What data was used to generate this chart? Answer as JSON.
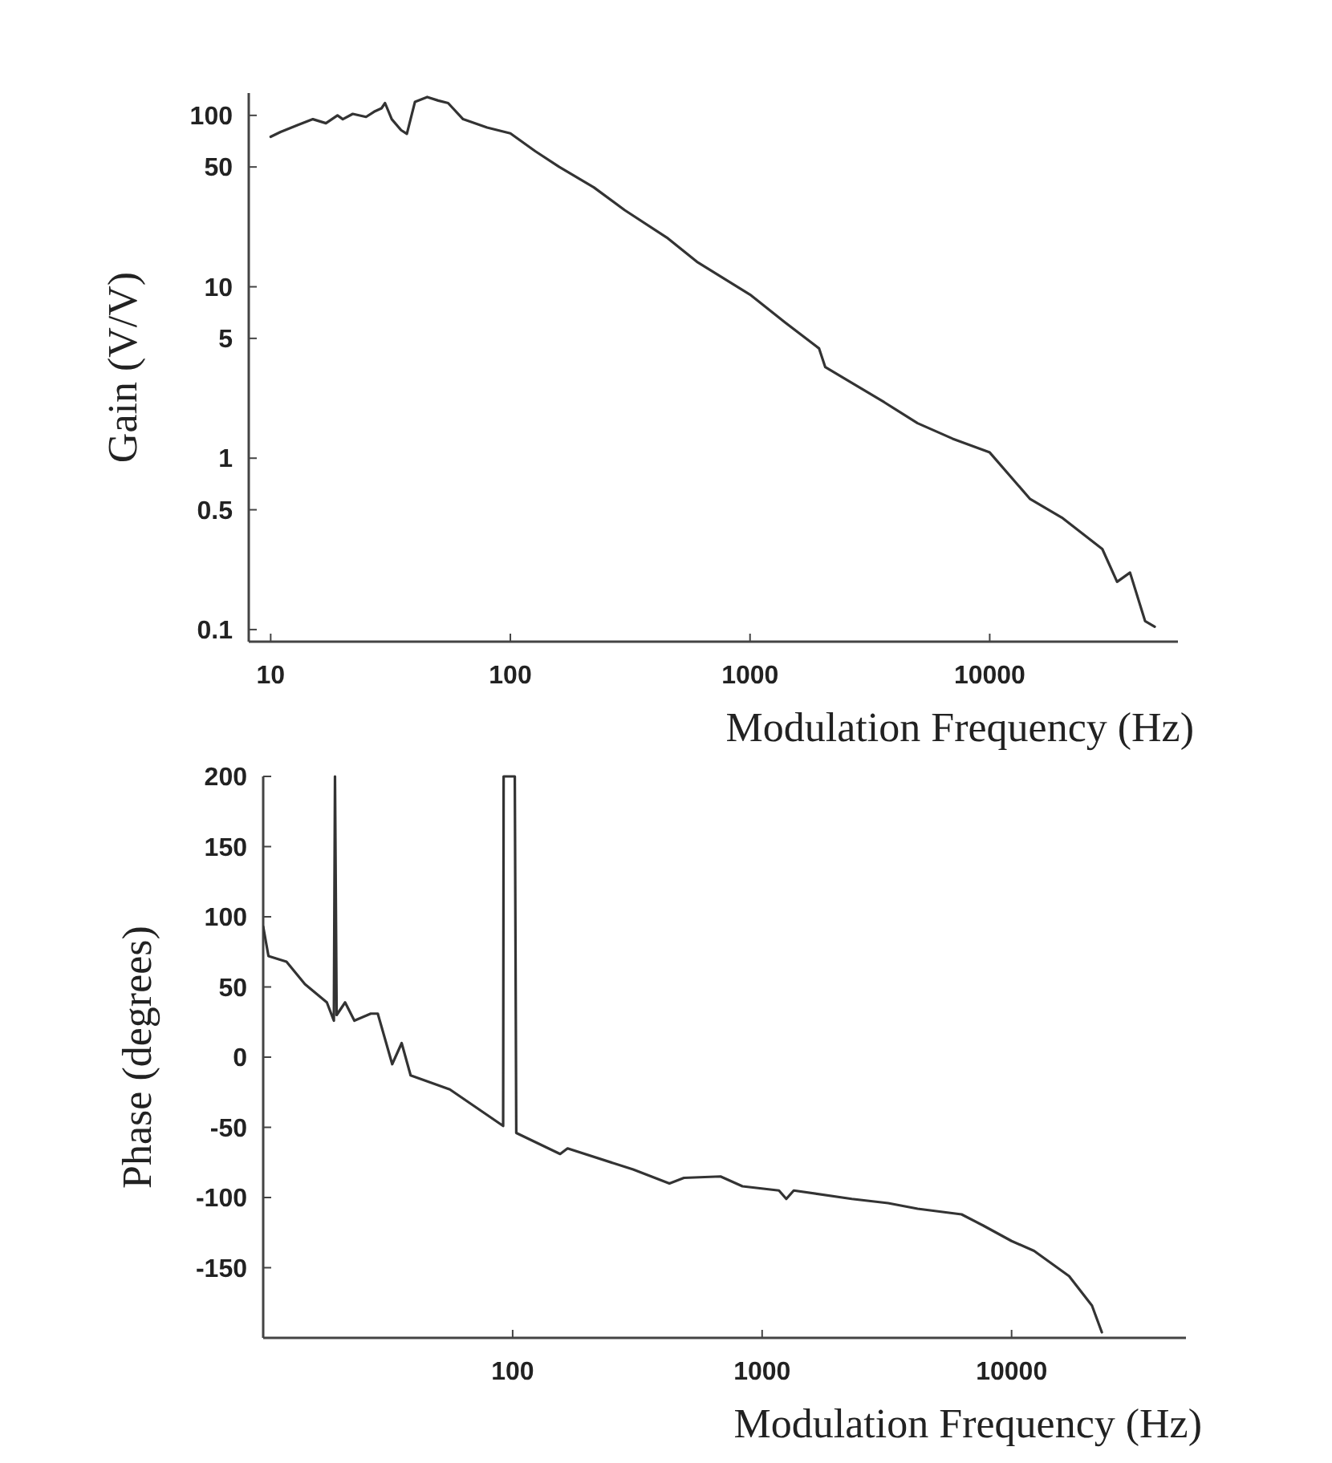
{
  "chart_data": [
    {
      "type": "line",
      "xlabel": "Modulation Frequency (Hz)",
      "ylabel": "Gain (V/V)",
      "log": "xy",
      "grid": false,
      "marker": "none",
      "line_style": "solid",
      "xlim": [
        8.1,
        61000
      ],
      "ylim": [
        0.085,
        135
      ],
      "xticks": [
        10,
        100,
        1000,
        10000
      ],
      "yticks": [
        0.1,
        0.5,
        1,
        5,
        10,
        50,
        100
      ],
      "series": [
        {
          "color": "#333333",
          "x": [
            10,
            11,
            13,
            15,
            17,
            19,
            20,
            22,
            25,
            27,
            29,
            30,
            32,
            35,
            37,
            40,
            45,
            50,
            55,
            63.5,
            80,
            100,
            127,
            160,
            223,
            300,
            449,
            600,
            1000,
            1400,
            1940,
            2060,
            2600,
            3630,
            5000,
            7000,
            10000,
            14700,
            20000,
            29500,
            34000,
            38500,
            44500,
            48800
          ],
          "values": [
            75,
            80,
            88,
            95,
            90,
            100,
            95,
            102,
            98,
            105,
            110,
            118,
            95,
            82,
            78,
            120,
            128,
            122,
            118,
            95,
            85,
            78.6,
            61.8,
            50,
            38,
            28,
            19.4,
            14,
            9,
            6.2,
            4.37,
            3.4,
            2.8,
            2.12,
            1.6,
            1.3,
            1.08,
            0.58,
            0.45,
            0.295,
            0.19,
            0.215,
            0.112,
            0.104
          ]
        }
      ]
    },
    {
      "type": "line",
      "xlabel": "Modulation Frequency (Hz)",
      "ylabel": "Phase (degrees)",
      "log": "x",
      "grid": false,
      "marker": "none",
      "line_style": "solid",
      "xlim": [
        10,
        50000
      ],
      "ylim": [
        -200,
        200
      ],
      "xticks": [
        100,
        1000,
        10000
      ],
      "yticks": [
        -150,
        -100,
        -50,
        0,
        50,
        100,
        150,
        200
      ],
      "series": [
        {
          "color": "#333333",
          "x": [
            10,
            10.5,
            12.4,
            14.7,
            18,
            19.2,
            19.4,
            19.7,
            21.3,
            23.2,
            27,
            28.8,
            32.9,
            35.9,
            39,
            56,
            91.6,
            92,
            102,
            103.4,
            155,
            166,
            304,
            425,
            486,
            681,
            834,
            1168,
            1250,
            1339,
            2288,
            3200,
            4200,
            6300,
            7700,
            10000,
            12300,
            17000,
            21000,
            23000
          ],
          "values": [
            93,
            72,
            68,
            52,
            39,
            26,
            200,
            30,
            39,
            26,
            31,
            31,
            -5,
            10,
            -13,
            -23,
            -49,
            200,
            200,
            -54,
            -69,
            -65,
            -80,
            -90,
            -86,
            -85,
            -92,
            -95,
            -101,
            -95,
            -101,
            -104,
            -108,
            -112,
            -120,
            -131,
            -138,
            -156,
            -177,
            -196
          ]
        }
      ]
    }
  ]
}
